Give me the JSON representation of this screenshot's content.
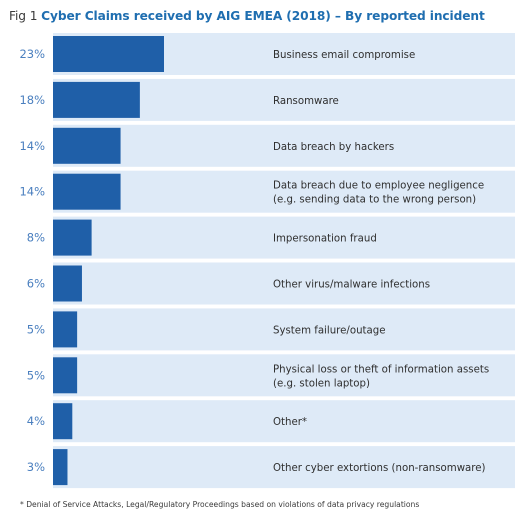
{
  "title": {
    "prefix": "Fig 1 ",
    "main": "Cyber Claims received by AIG EMEA (2018)",
    "suffix": "  – By reported incident"
  },
  "footnote": "* Denial of Service Attacks, Legal/Regulatory Proceedings based on violations of data privacy regulations",
  "colors": {
    "bar": "#1f5fa8",
    "row_background": "#deeaf7",
    "percent_text": "#4a7fbf",
    "label_text": "#2f2f2f",
    "title": "#1f6eb0"
  },
  "chart_data": {
    "type": "bar",
    "orientation": "horizontal",
    "title": "Cyber Claims received by AIG EMEA (2018)  – By reported incident",
    "xlabel": "",
    "ylabel": "",
    "xlim": [
      0,
      46
    ],
    "grid": false,
    "legend": "none",
    "categories": [
      [
        "Business email compromise"
      ],
      [
        "Ransomware"
      ],
      [
        "Data breach by hackers"
      ],
      [
        "Data breach due to employee negligence",
        "(e.g. sending data to the wrong person)"
      ],
      [
        "Impersonation fraud"
      ],
      [
        "Other virus/malware infections"
      ],
      [
        "System failure/outage"
      ],
      [
        "Physical loss or theft of information assets",
        "(e.g. stolen laptop)"
      ],
      [
        "Other*"
      ],
      [
        "Other cyber extortions (non-ransomware)"
      ]
    ],
    "values": [
      23,
      18,
      14,
      14,
      8,
      6,
      5,
      5,
      4,
      3
    ],
    "value_labels": [
      "23%",
      "18%",
      "14%",
      "14%",
      "8%",
      "6%",
      "5%",
      "5%",
      "4%",
      "3%"
    ]
  }
}
